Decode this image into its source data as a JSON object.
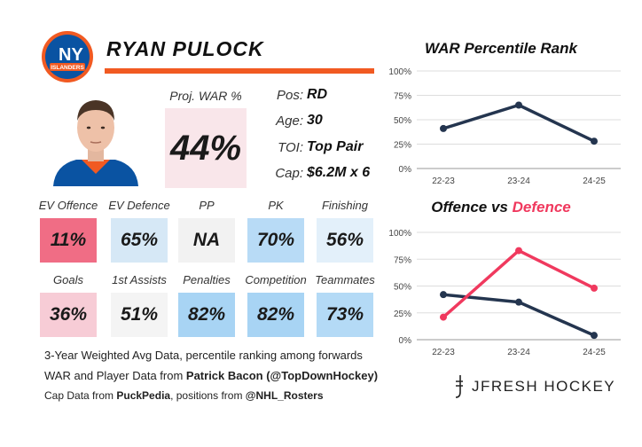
{
  "player": {
    "name": "RYAN PULOCK",
    "team_logo_text": "ISLANDERS",
    "team_logo_abbr": "NY"
  },
  "war": {
    "label": "Proj. WAR %",
    "value": "44%"
  },
  "info": [
    {
      "key": "Pos:",
      "value": "RD"
    },
    {
      "key": "Age:",
      "value": "30"
    },
    {
      "key": "TOI:",
      "value": "Top Pair"
    },
    {
      "key": "Cap:",
      "value": "$6.2M x 6"
    }
  ],
  "metrics_row1": [
    {
      "label": "EV Offence",
      "value": "11%",
      "color": "#f06d85"
    },
    {
      "label": "EV Defence",
      "value": "65%",
      "color": "#d6e8f6"
    },
    {
      "label": "PP",
      "value": "NA",
      "color": "#f2f2f2"
    },
    {
      "label": "PK",
      "value": "70%",
      "color": "#b8dbf6"
    },
    {
      "label": "Finishing",
      "value": "56%",
      "color": "#e3f0fa"
    }
  ],
  "metrics_row2": [
    {
      "label": "Goals",
      "value": "36%",
      "color": "#f7ccd6"
    },
    {
      "label": "1st Assists",
      "value": "51%",
      "color": "#f4f4f4"
    },
    {
      "label": "Penalties",
      "value": "82%",
      "color": "#a8d4f4"
    },
    {
      "label": "Competition",
      "value": "82%",
      "color": "#a8d4f4"
    },
    {
      "label": "Teammates",
      "value": "73%",
      "color": "#b4daf6"
    }
  ],
  "footer": {
    "line1": "3-Year Weighted Avg Data, percentile ranking among forwards",
    "line2_prefix": "WAR and Player Data from ",
    "line2_bold": "Patrick Bacon (@TopDownHockey)",
    "line3_prefix": "Cap Data from ",
    "line3_bold1": "PuckPedia",
    "line3_mid": ", positions from ",
    "line3_bold2": "@NHL_Rosters"
  },
  "brand": {
    "text": "JFRESH HOCKEY"
  },
  "colors": {
    "accent_orange": "#f15a22",
    "navy": "#24354f",
    "red": "#f0395e",
    "war_box": "#f9e6ea",
    "islanders_blue": "#0a53a2"
  },
  "chart_data": [
    {
      "type": "line",
      "title": "WAR Percentile Rank",
      "categories": [
        "22-23",
        "23-24",
        "24-25"
      ],
      "series": [
        {
          "name": "WAR",
          "values": [
            41,
            65,
            28
          ],
          "color": "#24354f"
        }
      ],
      "ylim": [
        0,
        100
      ],
      "yticks": [
        0,
        25,
        50,
        75,
        100
      ],
      "ytick_labels": [
        "0%",
        "25%",
        "50%",
        "75%",
        "100%"
      ],
      "grid": true
    },
    {
      "type": "line",
      "title_part1": "Offence",
      "title_part2": " vs ",
      "title_part3": "Defence",
      "categories": [
        "22-23",
        "23-24",
        "24-25"
      ],
      "series": [
        {
          "name": "Offence",
          "values": [
            42,
            35,
            4
          ],
          "color": "#24354f"
        },
        {
          "name": "Defence",
          "values": [
            21,
            83,
            48
          ],
          "color": "#f0395e"
        }
      ],
      "ylim": [
        0,
        100
      ],
      "yticks": [
        0,
        25,
        50,
        75,
        100
      ],
      "ytick_labels": [
        "0%",
        "25%",
        "50%",
        "75%",
        "100%"
      ],
      "grid": true
    }
  ]
}
